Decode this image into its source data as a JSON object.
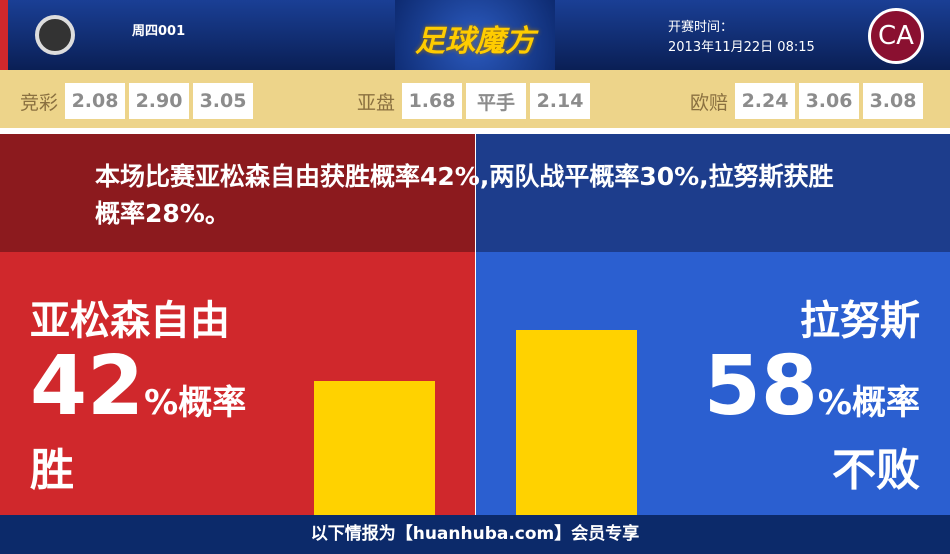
{
  "header": {
    "match_no": "周四001",
    "logo_text": "足球魔方",
    "kickoff_label": "开赛时间：",
    "kickoff_time": "2013年11月22日 08:15",
    "home_badge_icon": "club-crest-icon",
    "away_badge_icon": "club-crest-icon",
    "away_badge_glyph": "CA"
  },
  "odds": {
    "jingcai": {
      "label": "竞彩",
      "values": [
        "2.08",
        "2.90",
        "3.05"
      ]
    },
    "yapan": {
      "label": "亚盘",
      "values": [
        "1.68",
        "平手",
        "2.14"
      ]
    },
    "ouzhou": {
      "label": "欧赔",
      "values": [
        "2.24",
        "3.06",
        "3.08"
      ]
    }
  },
  "summary": "本场比赛亚松森自由获胜概率42%,两队战平概率30%,拉努斯获胜概率28%。",
  "home": {
    "name": "亚松森自由",
    "percent": "42",
    "suffix": "%概率",
    "result": "胜",
    "value": 42
  },
  "away": {
    "name": "拉努斯",
    "percent": "58",
    "suffix": "%概率",
    "result": "不败",
    "value": 58
  },
  "colors": {
    "home": "#d0282c",
    "away": "#2b5fd0",
    "bar": "#ffd200"
  },
  "footer": "以下情报为【huanhuba.com】会员专享"
}
